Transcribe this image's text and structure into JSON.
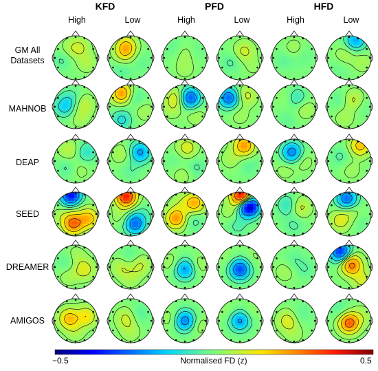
{
  "groups": [
    {
      "name": "KFD",
      "conditions": [
        "High",
        "Low"
      ]
    },
    {
      "name": "PFD",
      "conditions": [
        "High",
        "Low"
      ]
    },
    {
      "name": "HFD",
      "conditions": [
        "High",
        "Low"
      ]
    }
  ],
  "rows": [
    {
      "label": "GM All\nDatasets"
    },
    {
      "label": "MAHNOB"
    },
    {
      "label": "DEAP"
    },
    {
      "label": "SEED"
    },
    {
      "label": "DREAMER"
    },
    {
      "label": "AMIGOS"
    }
  ],
  "colorbar": {
    "min_label": "−0.5",
    "max_label": "0.5",
    "label": "Normalised FD (z)",
    "min": -0.5,
    "max": 0.5,
    "colormap": "jet"
  },
  "maps": [
    [
      [
        [
          0.38,
          0.3,
          0.05
        ],
        [
          0.6,
          0.25,
          0.08
        ],
        [
          0.2,
          0.55,
          -0.05
        ],
        [
          0.75,
          0.6,
          0.06
        ]
      ],
      [
        [
          0.4,
          0.25,
          0.2
        ],
        [
          0.35,
          0.45,
          0.08
        ],
        [
          0.3,
          0.75,
          -0.05
        ],
        [
          0.75,
          0.6,
          -0.03
        ]
      ],
      [
        [
          0.5,
          0.4,
          0.06
        ],
        [
          0.3,
          0.3,
          -0.04
        ],
        [
          0.72,
          0.35,
          -0.03
        ],
        [
          0.5,
          0.75,
          0.04
        ]
      ],
      [
        [
          0.6,
          0.35,
          0.1
        ],
        [
          0.3,
          0.6,
          -0.05
        ],
        [
          0.8,
          0.7,
          0.03
        ]
      ],
      [
        [
          0.3,
          0.55,
          -0.04
        ],
        [
          0.7,
          0.45,
          -0.03
        ],
        [
          0.5,
          0.3,
          0.05
        ]
      ],
      [
        [
          0.65,
          0.1,
          -0.2
        ],
        [
          0.4,
          0.45,
          0.06
        ],
        [
          0.8,
          0.6,
          0.05
        ],
        [
          0.3,
          0.7,
          -0.03
        ]
      ]
    ],
    [
      [
        [
          0.4,
          0.3,
          -0.06
        ],
        [
          0.7,
          0.45,
          0.08
        ],
        [
          0.25,
          0.5,
          -0.14
        ],
        [
          0.6,
          0.75,
          0.05
        ]
      ],
      [
        [
          0.3,
          0.2,
          0.25
        ],
        [
          0.6,
          0.3,
          -0.06
        ],
        [
          0.3,
          0.8,
          -0.12
        ],
        [
          0.8,
          0.6,
          0.05
        ]
      ],
      [
        [
          0.3,
          0.3,
          0.12
        ],
        [
          0.62,
          0.3,
          -0.3
        ],
        [
          0.2,
          0.55,
          0.05
        ],
        [
          0.75,
          0.7,
          0.05
        ]
      ],
      [
        [
          0.25,
          0.3,
          -0.28
        ],
        [
          0.65,
          0.25,
          0.1
        ],
        [
          0.5,
          0.7,
          0.04
        ]
      ],
      [
        [
          0.35,
          0.3,
          0.04
        ],
        [
          0.55,
          0.3,
          -0.1
        ],
        [
          0.75,
          0.55,
          0.06
        ],
        [
          0.35,
          0.8,
          -0.03
        ]
      ],
      [
        [
          0.3,
          0.35,
          -0.04
        ],
        [
          0.6,
          0.35,
          0.1
        ],
        [
          0.4,
          0.75,
          0.05
        ],
        [
          0.8,
          0.5,
          -0.03
        ]
      ]
    ],
    [
      [
        [
          0.35,
          0.25,
          0.08
        ],
        [
          0.75,
          0.3,
          -0.1
        ],
        [
          0.3,
          0.65,
          -0.05
        ],
        [
          0.6,
          0.7,
          0.04
        ]
      ],
      [
        [
          0.3,
          0.35,
          0.06
        ],
        [
          0.72,
          0.3,
          -0.22
        ],
        [
          0.5,
          0.7,
          -0.04
        ]
      ],
      [
        [
          0.55,
          0.2,
          0.12
        ],
        [
          0.3,
          0.5,
          -0.03
        ],
        [
          0.75,
          0.65,
          -0.05
        ],
        [
          0.45,
          0.8,
          0.05
        ]
      ],
      [
        [
          0.6,
          0.15,
          0.25
        ],
        [
          0.3,
          0.45,
          0.05
        ],
        [
          0.7,
          0.6,
          -0.04
        ]
      ],
      [
        [
          0.45,
          0.3,
          -0.25
        ],
        [
          0.7,
          0.5,
          0.05
        ],
        [
          0.3,
          0.7,
          0.04
        ]
      ],
      [
        [
          0.75,
          0.15,
          0.2
        ],
        [
          0.3,
          0.4,
          -0.05
        ],
        [
          0.55,
          0.7,
          0.04
        ]
      ]
    ],
    [
      [
        [
          0.4,
          0.08,
          -0.4
        ],
        [
          0.5,
          0.3,
          0.03
        ],
        [
          0.45,
          0.72,
          0.3
        ],
        [
          0.2,
          0.55,
          0.05
        ],
        [
          0.8,
          0.6,
          0.2
        ]
      ],
      [
        [
          0.4,
          0.1,
          0.4
        ],
        [
          0.3,
          0.55,
          0.05
        ],
        [
          0.6,
          0.72,
          -0.28
        ],
        [
          0.8,
          0.5,
          -0.04
        ]
      ],
      [
        [
          0.4,
          0.25,
          0.05
        ],
        [
          0.72,
          0.25,
          0.22
        ],
        [
          0.3,
          0.6,
          0.25
        ],
        [
          0.7,
          0.65,
          -0.06
        ]
      ],
      [
        [
          0.55,
          0.1,
          0.5
        ],
        [
          0.7,
          0.32,
          -0.55
        ],
        [
          0.3,
          0.45,
          0.05
        ],
        [
          0.45,
          0.75,
          -0.06
        ]
      ],
      [
        [
          0.35,
          0.3,
          -0.1
        ],
        [
          0.65,
          0.35,
          0.1
        ],
        [
          0.5,
          0.75,
          -0.05
        ]
      ],
      [
        [
          0.45,
          0.15,
          -0.28
        ],
        [
          0.55,
          0.45,
          0.06
        ],
        [
          0.3,
          0.65,
          0.12
        ],
        [
          0.75,
          0.7,
          -0.03
        ]
      ]
    ],
    [
      [
        [
          0.3,
          0.4,
          -0.05
        ],
        [
          0.5,
          0.25,
          0.05
        ],
        [
          0.7,
          0.55,
          0.12
        ],
        [
          0.35,
          0.7,
          0.05
        ]
      ],
      [
        [
          0.3,
          0.5,
          0.08
        ],
        [
          0.5,
          0.3,
          -0.06
        ],
        [
          0.7,
          0.45,
          0.1
        ],
        [
          0.5,
          0.75,
          0.05
        ]
      ],
      [
        [
          0.5,
          0.55,
          -0.22
        ],
        [
          0.2,
          0.4,
          0.05
        ],
        [
          0.8,
          0.45,
          0.05
        ]
      ],
      [
        [
          0.5,
          0.55,
          -0.32
        ],
        [
          0.25,
          0.3,
          0.03
        ],
        [
          0.8,
          0.3,
          0.03
        ]
      ],
      [
        [
          0.5,
          0.35,
          -0.04
        ],
        [
          0.3,
          0.6,
          0.05
        ],
        [
          0.75,
          0.55,
          -0.04
        ]
      ],
      [
        [
          0.3,
          0.15,
          -0.35
        ],
        [
          0.55,
          0.45,
          0.3
        ],
        [
          0.8,
          0.8,
          0.1
        ]
      ]
    ],
    [
      [
        [
          0.35,
          0.45,
          0.2
        ],
        [
          0.75,
          0.4,
          0.15
        ],
        [
          0.5,
          0.75,
          0.05
        ]
      ],
      [
        [
          0.4,
          0.45,
          0.1
        ],
        [
          0.7,
          0.35,
          -0.05
        ],
        [
          0.5,
          0.75,
          0.05
        ]
      ],
      [
        [
          0.5,
          0.5,
          -0.26
        ],
        [
          0.2,
          0.45,
          0.05
        ],
        [
          0.8,
          0.6,
          0.05
        ]
      ],
      [
        [
          0.5,
          0.5,
          -0.22
        ],
        [
          0.25,
          0.3,
          0.03
        ],
        [
          0.75,
          0.3,
          0.03
        ]
      ],
      [
        [
          0.35,
          0.5,
          0.12
        ],
        [
          0.65,
          0.35,
          -0.04
        ],
        [
          0.5,
          0.8,
          0.04
        ]
      ],
      [
        [
          0.5,
          0.55,
          0.32
        ],
        [
          0.3,
          0.25,
          -0.05
        ],
        [
          0.8,
          0.4,
          0.05
        ]
      ]
    ]
  ]
}
